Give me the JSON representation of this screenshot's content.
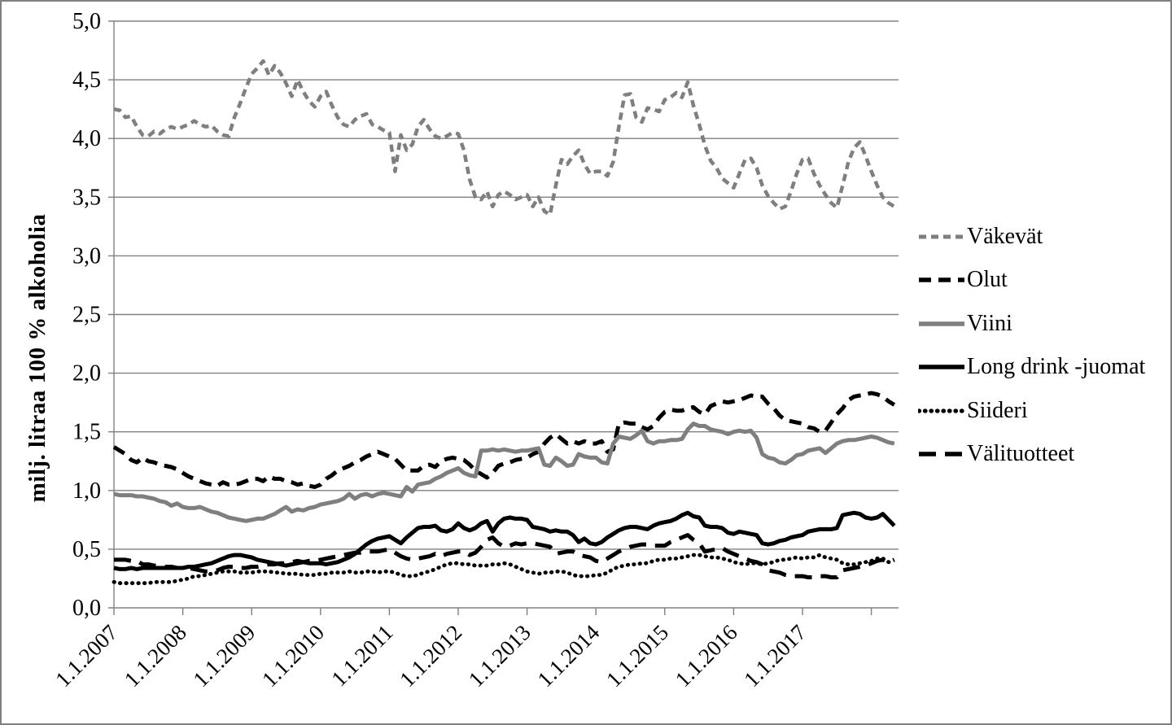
{
  "page": {
    "background": "#ffffff",
    "frame_border_color": "#808080"
  },
  "chart_data": {
    "type": "line",
    "title": "",
    "xlabel": "",
    "ylabel": "milj. litraa 100 % alkoholia",
    "ylim": [
      0.0,
      5.0
    ],
    "y_tick_step": 0.5,
    "y_tick_labels": [
      "0,0",
      "0,5",
      "1,0",
      "1,5",
      "2,0",
      "2,5",
      "3,0",
      "3,5",
      "4,0",
      "4,5",
      "5,0"
    ],
    "x_tick_labels": [
      "1.1.2007",
      "1.1.2008",
      "1.1.2009",
      "1.1.2010",
      "1.1.2011",
      "1.1.2012",
      "1.1.2013",
      "1.1.2014",
      "1.1.2015",
      "1.1.2016",
      "1.1.2017"
    ],
    "has_trailing_unlabeled_tick": true,
    "x_resolution": "monthly",
    "points_per_year": 12,
    "grid": "horizontal",
    "gridline_color": "#808080",
    "legend_position": "right",
    "series": [
      {
        "id": "vakevat",
        "name": "Väkevät",
        "color": "#7f7f7f",
        "style": "dash",
        "values": [
          4.25,
          4.24,
          4.18,
          4.19,
          4.1,
          4.03,
          4.02,
          4.06,
          4.04,
          4.08,
          4.1,
          4.08,
          4.1,
          4.12,
          4.15,
          4.12,
          4.1,
          4.11,
          4.06,
          4.03,
          4.02,
          4.18,
          4.3,
          4.43,
          4.55,
          4.6,
          4.66,
          4.54,
          4.62,
          4.56,
          4.47,
          4.36,
          4.5,
          4.4,
          4.32,
          4.27,
          4.36,
          4.4,
          4.28,
          4.18,
          4.12,
          4.1,
          4.16,
          4.19,
          4.21,
          4.12,
          4.1,
          4.07,
          4.05,
          3.72,
          4.03,
          3.9,
          3.95,
          4.1,
          4.16,
          4.08,
          4.02,
          4.0,
          4.02,
          4.05,
          4.04,
          3.9,
          3.65,
          3.5,
          3.48,
          3.55,
          3.42,
          3.52,
          3.55,
          3.52,
          3.48,
          3.5,
          3.52,
          3.42,
          3.5,
          3.38,
          3.35,
          3.6,
          3.82,
          3.78,
          3.85,
          3.9,
          3.78,
          3.7,
          3.72,
          3.72,
          3.68,
          3.8,
          4.1,
          4.37,
          4.38,
          4.18,
          4.14,
          4.26,
          4.25,
          4.23,
          4.33,
          4.35,
          4.39,
          4.35,
          4.48,
          4.28,
          4.12,
          3.94,
          3.81,
          3.75,
          3.66,
          3.62,
          3.58,
          3.7,
          3.82,
          3.83,
          3.75,
          3.6,
          3.51,
          3.45,
          3.4,
          3.42,
          3.55,
          3.7,
          3.82,
          3.83,
          3.7,
          3.6,
          3.52,
          3.45,
          3.41,
          3.6,
          3.8,
          3.92,
          3.97,
          3.85,
          3.72,
          3.6,
          3.5,
          3.45,
          3.42
        ]
      },
      {
        "id": "olut",
        "name": "Olut",
        "color": "#000000",
        "style": "dash-medium",
        "values": [
          1.37,
          1.34,
          1.31,
          1.26,
          1.24,
          1.28,
          1.25,
          1.24,
          1.22,
          1.21,
          1.2,
          1.18,
          1.15,
          1.12,
          1.1,
          1.08,
          1.06,
          1.05,
          1.04,
          1.07,
          1.05,
          1.05,
          1.06,
          1.08,
          1.1,
          1.1,
          1.08,
          1.12,
          1.1,
          1.1,
          1.08,
          1.07,
          1.05,
          1.06,
          1.04,
          1.03,
          1.05,
          1.1,
          1.13,
          1.17,
          1.19,
          1.21,
          1.24,
          1.26,
          1.29,
          1.31,
          1.33,
          1.31,
          1.29,
          1.27,
          1.22,
          1.17,
          1.17,
          1.17,
          1.21,
          1.22,
          1.2,
          1.25,
          1.27,
          1.28,
          1.27,
          1.26,
          1.22,
          1.17,
          1.14,
          1.11,
          1.15,
          1.21,
          1.23,
          1.24,
          1.26,
          1.27,
          1.28,
          1.31,
          1.33,
          1.4,
          1.45,
          1.48,
          1.44,
          1.4,
          1.42,
          1.4,
          1.42,
          1.4,
          1.4,
          1.42,
          1.33,
          1.35,
          1.57,
          1.58,
          1.57,
          1.57,
          1.54,
          1.52,
          1.55,
          1.62,
          1.67,
          1.69,
          1.68,
          1.68,
          1.7,
          1.71,
          1.67,
          1.65,
          1.72,
          1.74,
          1.76,
          1.75,
          1.76,
          1.77,
          1.79,
          1.81,
          1.8,
          1.8,
          1.74,
          1.7,
          1.64,
          1.6,
          1.59,
          1.58,
          1.57,
          1.54,
          1.53,
          1.5,
          1.51,
          1.58,
          1.65,
          1.7,
          1.77,
          1.8,
          1.81,
          1.82,
          1.83,
          1.82,
          1.8,
          1.76,
          1.73
        ]
      },
      {
        "id": "viini",
        "name": "Viini",
        "color": "#7f7f7f",
        "style": "solid",
        "values": [
          0.97,
          0.96,
          0.96,
          0.96,
          0.95,
          0.95,
          0.94,
          0.93,
          0.91,
          0.9,
          0.87,
          0.89,
          0.86,
          0.85,
          0.85,
          0.86,
          0.84,
          0.82,
          0.81,
          0.79,
          0.77,
          0.76,
          0.75,
          0.74,
          0.75,
          0.76,
          0.76,
          0.78,
          0.8,
          0.83,
          0.86,
          0.82,
          0.84,
          0.83,
          0.85,
          0.86,
          0.88,
          0.89,
          0.9,
          0.91,
          0.93,
          0.97,
          0.93,
          0.96,
          0.97,
          0.95,
          0.97,
          0.98,
          0.97,
          0.96,
          0.95,
          1.03,
          0.99,
          1.05,
          1.06,
          1.07,
          1.1,
          1.12,
          1.15,
          1.17,
          1.19,
          1.15,
          1.13,
          1.12,
          1.34,
          1.34,
          1.35,
          1.34,
          1.35,
          1.34,
          1.33,
          1.34,
          1.34,
          1.35,
          1.36,
          1.22,
          1.21,
          1.28,
          1.25,
          1.21,
          1.22,
          1.31,
          1.29,
          1.28,
          1.28,
          1.24,
          1.23,
          1.4,
          1.46,
          1.45,
          1.44,
          1.47,
          1.51,
          1.42,
          1.4,
          1.42,
          1.42,
          1.43,
          1.43,
          1.44,
          1.52,
          1.57,
          1.55,
          1.55,
          1.52,
          1.51,
          1.5,
          1.48,
          1.5,
          1.51,
          1.5,
          1.51,
          1.45,
          1.31,
          1.28,
          1.27,
          1.24,
          1.23,
          1.26,
          1.3,
          1.31,
          1.34,
          1.35,
          1.36,
          1.32,
          1.36,
          1.4,
          1.42,
          1.43,
          1.43,
          1.44,
          1.45,
          1.46,
          1.45,
          1.43,
          1.41,
          1.4
        ]
      },
      {
        "id": "long-drink",
        "name": "Long drink -juomat",
        "color": "#000000",
        "style": "solid",
        "values": [
          0.34,
          0.33,
          0.33,
          0.34,
          0.33,
          0.34,
          0.34,
          0.34,
          0.34,
          0.34,
          0.34,
          0.34,
          0.34,
          0.35,
          0.35,
          0.36,
          0.37,
          0.38,
          0.4,
          0.42,
          0.44,
          0.45,
          0.45,
          0.44,
          0.43,
          0.41,
          0.4,
          0.39,
          0.38,
          0.37,
          0.36,
          0.37,
          0.38,
          0.39,
          0.38,
          0.38,
          0.38,
          0.37,
          0.38,
          0.39,
          0.41,
          0.43,
          0.46,
          0.5,
          0.54,
          0.57,
          0.59,
          0.6,
          0.61,
          0.58,
          0.55,
          0.6,
          0.64,
          0.68,
          0.69,
          0.69,
          0.7,
          0.66,
          0.65,
          0.67,
          0.72,
          0.68,
          0.66,
          0.68,
          0.72,
          0.74,
          0.65,
          0.72,
          0.76,
          0.77,
          0.76,
          0.76,
          0.75,
          0.69,
          0.68,
          0.67,
          0.65,
          0.66,
          0.65,
          0.65,
          0.62,
          0.56,
          0.59,
          0.55,
          0.54,
          0.56,
          0.6,
          0.63,
          0.66,
          0.68,
          0.69,
          0.69,
          0.68,
          0.67,
          0.7,
          0.72,
          0.73,
          0.74,
          0.76,
          0.79,
          0.81,
          0.78,
          0.77,
          0.7,
          0.69,
          0.69,
          0.68,
          0.64,
          0.63,
          0.65,
          0.64,
          0.63,
          0.62,
          0.55,
          0.54,
          0.55,
          0.57,
          0.58,
          0.6,
          0.61,
          0.62,
          0.65,
          0.66,
          0.67,
          0.67,
          0.67,
          0.68,
          0.79,
          0.8,
          0.81,
          0.8,
          0.77,
          0.76,
          0.77,
          0.8,
          0.75,
          0.7
        ]
      },
      {
        "id": "siideri",
        "name": "Siideri",
        "color": "#000000",
        "style": "dotted",
        "values": [
          0.22,
          0.21,
          0.21,
          0.21,
          0.21,
          0.21,
          0.21,
          0.22,
          0.22,
          0.22,
          0.22,
          0.23,
          0.24,
          0.25,
          0.27,
          0.27,
          0.28,
          0.29,
          0.3,
          0.31,
          0.31,
          0.31,
          0.3,
          0.3,
          0.3,
          0.31,
          0.31,
          0.31,
          0.3,
          0.3,
          0.29,
          0.29,
          0.29,
          0.28,
          0.28,
          0.28,
          0.29,
          0.29,
          0.3,
          0.3,
          0.3,
          0.31,
          0.3,
          0.3,
          0.31,
          0.31,
          0.3,
          0.31,
          0.31,
          0.3,
          0.28,
          0.27,
          0.27,
          0.28,
          0.3,
          0.31,
          0.33,
          0.35,
          0.37,
          0.38,
          0.38,
          0.37,
          0.37,
          0.36,
          0.36,
          0.36,
          0.37,
          0.37,
          0.38,
          0.37,
          0.35,
          0.33,
          0.31,
          0.3,
          0.29,
          0.3,
          0.3,
          0.31,
          0.31,
          0.3,
          0.28,
          0.27,
          0.27,
          0.27,
          0.28,
          0.28,
          0.3,
          0.33,
          0.35,
          0.36,
          0.37,
          0.37,
          0.38,
          0.38,
          0.4,
          0.41,
          0.41,
          0.42,
          0.42,
          0.43,
          0.44,
          0.45,
          0.45,
          0.44,
          0.43,
          0.43,
          0.42,
          0.41,
          0.39,
          0.38,
          0.37,
          0.38,
          0.38,
          0.37,
          0.38,
          0.39,
          0.41,
          0.41,
          0.42,
          0.43,
          0.42,
          0.43,
          0.43,
          0.45,
          0.43,
          0.42,
          0.41,
          0.38,
          0.37,
          0.37,
          0.38,
          0.39,
          0.4,
          0.42,
          0.42,
          0.39,
          0.39
        ]
      },
      {
        "id": "valituotteet",
        "name": "Välituotteet",
        "color": "#000000",
        "style": "long-dash",
        "values": [
          0.41,
          0.41,
          0.41,
          0.4,
          0.4,
          0.37,
          0.37,
          0.36,
          0.36,
          0.35,
          0.35,
          0.34,
          0.34,
          0.34,
          0.33,
          0.32,
          0.31,
          0.31,
          0.32,
          0.34,
          0.35,
          0.35,
          0.34,
          0.34,
          0.35,
          0.35,
          0.36,
          0.37,
          0.37,
          0.38,
          0.38,
          0.39,
          0.4,
          0.39,
          0.4,
          0.4,
          0.41,
          0.42,
          0.43,
          0.44,
          0.45,
          0.46,
          0.47,
          0.47,
          0.48,
          0.48,
          0.48,
          0.49,
          0.5,
          0.47,
          0.44,
          0.42,
          0.41,
          0.42,
          0.43,
          0.44,
          0.46,
          0.44,
          0.46,
          0.47,
          0.48,
          0.48,
          0.45,
          0.47,
          0.52,
          0.58,
          0.6,
          0.55,
          0.52,
          0.53,
          0.55,
          0.54,
          0.55,
          0.55,
          0.54,
          0.53,
          0.52,
          0.46,
          0.47,
          0.48,
          0.48,
          0.45,
          0.44,
          0.43,
          0.4,
          0.39,
          0.42,
          0.45,
          0.48,
          0.5,
          0.52,
          0.53,
          0.54,
          0.54,
          0.53,
          0.53,
          0.53,
          0.56,
          0.58,
          0.6,
          0.62,
          0.58,
          0.55,
          0.48,
          0.49,
          0.5,
          0.51,
          0.48,
          0.46,
          0.44,
          0.42,
          0.4,
          0.39,
          0.37,
          0.32,
          0.31,
          0.3,
          0.28,
          0.27,
          0.27,
          0.27,
          0.26,
          0.26,
          0.27,
          0.27,
          0.26,
          0.26,
          0.32,
          0.33,
          0.34,
          0.35,
          0.36,
          0.38,
          0.4,
          0.41,
          0.39,
          0.41
        ]
      }
    ]
  }
}
